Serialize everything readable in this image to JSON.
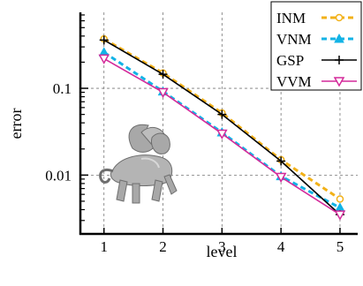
{
  "chart_data": {
    "type": "line",
    "xlabel": "level",
    "ylabel": "error",
    "x": [
      1,
      2,
      3,
      4,
      5
    ],
    "x_ticks": [
      "1",
      "2",
      "3",
      "4",
      "5"
    ],
    "xlim": [
      0.6,
      5.3
    ],
    "ylim": [
      0.0021,
      0.75
    ],
    "y_scale": "log",
    "y_ticks": [
      {
        "value": 0.1,
        "label": "0.1"
      },
      {
        "value": 0.01,
        "label": "0.01"
      }
    ],
    "grid": true,
    "grid_style": "dashed",
    "legend_placement": "top-right",
    "series": [
      {
        "name": "INM",
        "values": [
          0.37,
          0.15,
          0.052,
          0.015,
          0.0053
        ],
        "color": "#f2b118",
        "line_style": "dashed",
        "marker": "circle"
      },
      {
        "name": "VNM",
        "values": [
          0.26,
          0.092,
          0.031,
          0.0097,
          0.0042
        ],
        "color": "#12b3e6",
        "line_style": "dashed",
        "marker": "triangle-up"
      },
      {
        "name": "GSP",
        "values": [
          0.36,
          0.145,
          0.05,
          0.0145,
          0.0035
        ],
        "color": "#000000",
        "line_style": "solid",
        "marker": "plus"
      },
      {
        "name": "VVM",
        "values": [
          0.22,
          0.09,
          0.03,
          0.0095,
          0.0035
        ],
        "color": "#d42a9a",
        "line_style": "solid",
        "marker": "triangle-down"
      }
    ]
  }
}
